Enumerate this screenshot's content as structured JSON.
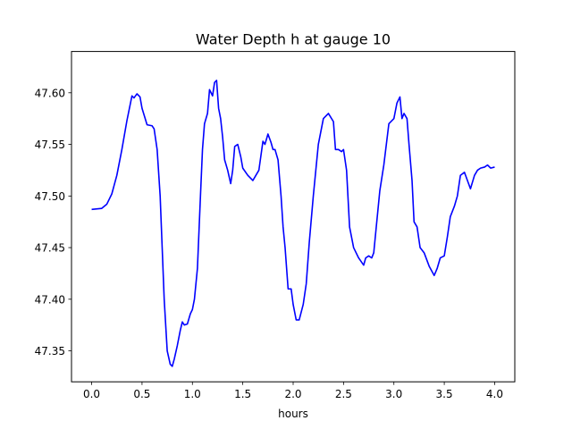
{
  "chart_data": {
    "type": "line",
    "title": "Water Depth h at gauge 10",
    "xlabel": "hours",
    "ylabel": "",
    "xlim": [
      -0.2,
      4.2
    ],
    "ylim": [
      47.32,
      47.64
    ],
    "grid": false,
    "legend": "none",
    "xticks": [
      0.0,
      0.5,
      1.0,
      1.5,
      2.0,
      2.5,
      3.0,
      3.5,
      4.0
    ],
    "xtick_labels": [
      "0.0",
      "0.5",
      "1.0",
      "1.5",
      "2.0",
      "2.5",
      "3.0",
      "3.5",
      "4.0"
    ],
    "yticks": [
      47.35,
      47.4,
      47.45,
      47.5,
      47.55,
      47.6
    ],
    "ytick_labels": [
      "47.35",
      "47.40",
      "47.45",
      "47.50",
      "47.55",
      "47.60"
    ],
    "series": [
      {
        "color": "#0000ff",
        "x": [
          0.0,
          0.1,
          0.15,
          0.2,
          0.25,
          0.3,
          0.35,
          0.4,
          0.42,
          0.45,
          0.48,
          0.5,
          0.55,
          0.6,
          0.62,
          0.65,
          0.68,
          0.7,
          0.72,
          0.75,
          0.78,
          0.8,
          0.82,
          0.85,
          0.88,
          0.9,
          0.92,
          0.95,
          0.98,
          1.0,
          1.02,
          1.05,
          1.08,
          1.1,
          1.12,
          1.15,
          1.17,
          1.2,
          1.22,
          1.24,
          1.26,
          1.28,
          1.3,
          1.32,
          1.35,
          1.38,
          1.4,
          1.42,
          1.45,
          1.48,
          1.5,
          1.55,
          1.6,
          1.63,
          1.66,
          1.7,
          1.72,
          1.75,
          1.78,
          1.8,
          1.82,
          1.85,
          1.88,
          1.9,
          1.92,
          1.95,
          1.98,
          2.0,
          2.03,
          2.06,
          2.1,
          2.13,
          2.16,
          2.2,
          2.25,
          2.3,
          2.35,
          2.4,
          2.42,
          2.45,
          2.48,
          2.5,
          2.53,
          2.56,
          2.6,
          2.65,
          2.7,
          2.72,
          2.75,
          2.78,
          2.8,
          2.83,
          2.86,
          2.9,
          2.95,
          3.0,
          3.03,
          3.06,
          3.08,
          3.1,
          3.13,
          3.15,
          3.18,
          3.2,
          3.23,
          3.26,
          3.3,
          3.35,
          3.4,
          3.43,
          3.46,
          3.5,
          3.53,
          3.56,
          3.6,
          3.63,
          3.66,
          3.7,
          3.73,
          3.76,
          3.8,
          3.83,
          3.86,
          3.9,
          3.93,
          3.96,
          4.0
        ],
        "y": [
          47.487,
          47.488,
          47.492,
          47.502,
          47.52,
          47.545,
          47.573,
          47.597,
          47.595,
          47.599,
          47.596,
          47.585,
          47.569,
          47.568,
          47.565,
          47.545,
          47.5,
          47.45,
          47.4,
          47.35,
          47.337,
          47.335,
          47.342,
          47.355,
          47.37,
          47.378,
          47.375,
          47.376,
          47.386,
          47.39,
          47.4,
          47.43,
          47.5,
          47.545,
          47.57,
          47.58,
          47.603,
          47.597,
          47.61,
          47.612,
          47.585,
          47.575,
          47.557,
          47.535,
          47.525,
          47.512,
          47.525,
          47.548,
          47.55,
          47.538,
          47.527,
          47.52,
          47.515,
          47.52,
          47.525,
          47.553,
          47.55,
          47.56,
          47.552,
          47.545,
          47.545,
          47.535,
          47.5,
          47.47,
          47.45,
          47.41,
          47.41,
          47.395,
          47.38,
          47.38,
          47.395,
          47.415,
          47.455,
          47.5,
          47.55,
          47.575,
          47.58,
          47.572,
          47.545,
          47.545,
          47.543,
          47.545,
          47.525,
          47.47,
          47.45,
          47.44,
          47.433,
          47.44,
          47.442,
          47.44,
          47.445,
          47.475,
          47.505,
          47.53,
          47.57,
          47.575,
          47.59,
          47.596,
          47.575,
          47.58,
          47.575,
          47.55,
          47.515,
          47.475,
          47.47,
          47.45,
          47.445,
          47.432,
          47.423,
          47.43,
          47.44,
          47.442,
          47.46,
          47.48,
          47.49,
          47.5,
          47.52,
          47.523,
          47.515,
          47.507,
          47.52,
          47.525,
          47.527,
          47.528,
          47.53,
          47.527,
          47.528
        ]
      }
    ]
  }
}
